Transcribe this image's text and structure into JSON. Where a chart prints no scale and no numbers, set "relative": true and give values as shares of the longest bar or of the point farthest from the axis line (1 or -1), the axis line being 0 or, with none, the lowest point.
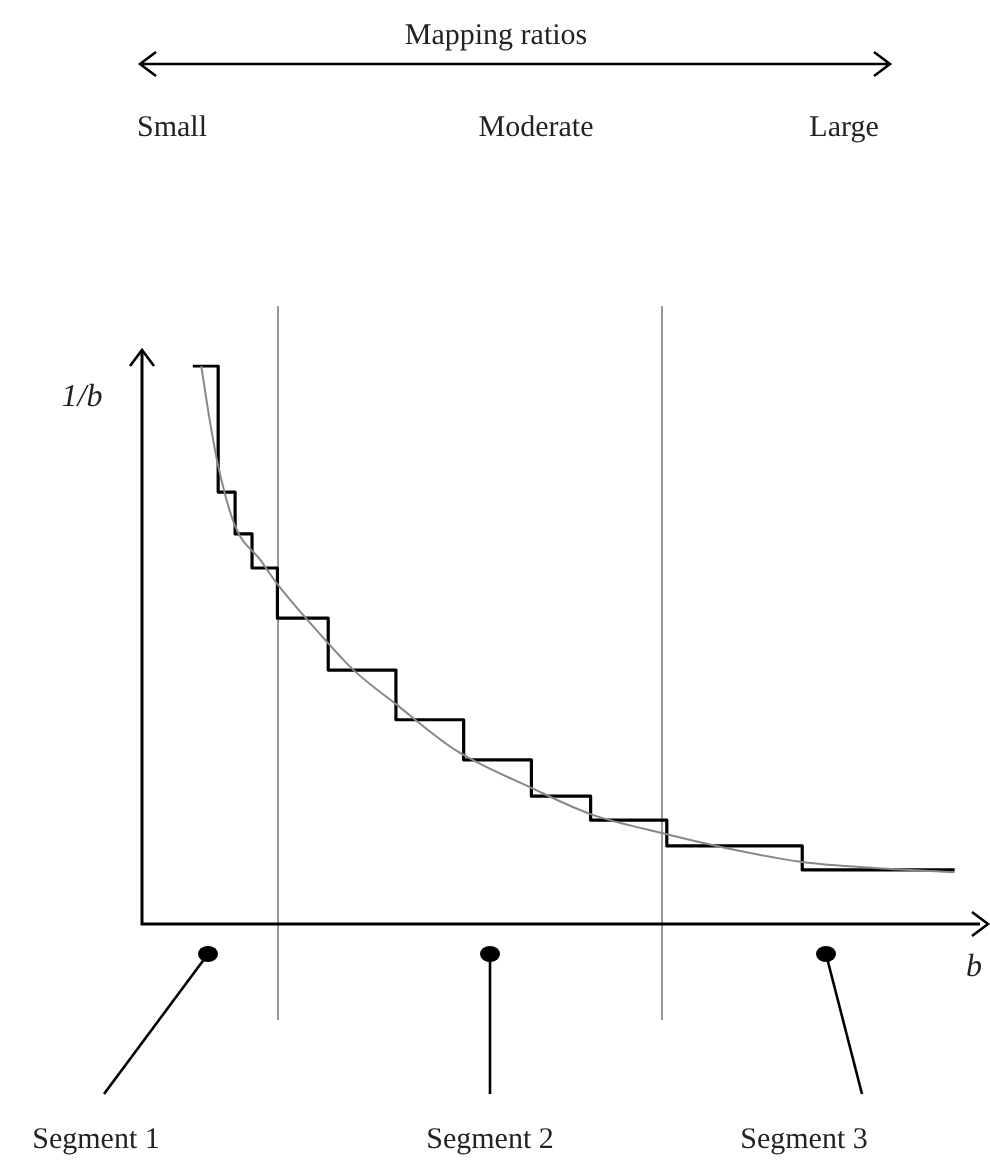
{
  "chart_data": {
    "type": "line",
    "relative": true,
    "xlabel": "b",
    "ylabel": "1/b",
    "marker": "none",
    "categories": [
      null,
      null,
      null,
      null,
      null,
      null,
      null,
      null,
      null,
      null,
      null,
      null,
      null,
      null,
      null,
      null,
      null,
      null,
      null,
      null,
      null,
      null,
      null,
      null,
      null,
      null,
      null,
      null,
      null,
      null,
      null,
      null,
      null,
      null,
      null,
      null,
      null,
      null,
      null,
      null,
      null,
      null,
      null,
      null,
      null,
      null,
      null,
      null,
      null,
      null,
      null,
      null,
      null,
      null,
      null,
      null,
      null,
      null,
      null,
      null,
      null,
      null,
      null,
      null,
      null,
      null,
      null,
      null,
      null,
      null,
      null,
      null,
      null,
      null,
      null,
      null,
      null,
      null,
      null,
      null,
      null,
      null,
      null,
      null,
      null,
      null,
      null,
      null,
      null,
      null,
      null,
      null,
      null,
      null,
      null,
      null,
      null,
      null,
      null,
      null
    ],
    "series": [
      {
        "type": "step",
        "color": "#000000",
        "values": [
          null,
          null,
          null,
          null,
          null,
          null,
          1,
          null,
          null,
          0.774,
          null,
          0.699,
          null,
          0.638,
          null,
          null,
          0.548,
          null,
          null,
          null,
          null,
          null,
          0.455,
          null,
          null,
          null,
          null,
          null,
          null,
          null,
          0.366,
          null,
          null,
          null,
          null,
          null,
          null,
          null,
          0.294,
          null,
          null,
          null,
          null,
          null,
          null,
          null,
          0.229,
          null,
          null,
          null,
          null,
          null,
          null,
          0.186,
          null,
          null,
          null,
          null,
          null,
          null,
          null,
          null,
          0.14,
          null,
          null,
          null,
          null,
          null,
          null,
          null,
          null,
          null,
          null,
          null,
          null,
          null,
          null,
          null,
          0.097,
          null,
          null,
          null,
          null,
          null,
          null,
          null,
          null,
          null,
          null,
          null,
          null,
          null,
          null,
          null,
          null,
          null,
          0.097,
          null,
          null,
          null
        ]
      },
      {
        "type": "line",
        "color": "#888888",
        "values": [
          null,
          null,
          null,
          null,
          null,
          null,
          null,
          1,
          0.903,
          0.821,
          null,
          0.713,
          null,
          null,
          0.652,
          null,
          0.609,
          null,
          null,
          null,
          null,
          0.52,
          null,
          null,
          null,
          0.455,
          null,
          null,
          null,
          null,
          0.394,
          null,
          null,
          null,
          null,
          null,
          null,
          0.312,
          null,
          null,
          null,
          null,
          null,
          null,
          null,
          null,
          0.244,
          null,
          null,
          null,
          null,
          null,
          null,
          0.197,
          null,
          null,
          null,
          null,
          null,
          null,
          null,
          null,
          0.161,
          null,
          null,
          null,
          null,
          null,
          null,
          null,
          0.133,
          null,
          null,
          null,
          null,
          null,
          null,
          null,
          0.111,
          null,
          null,
          null,
          null,
          null,
          null,
          null,
          null,
          0.1,
          null,
          null,
          null,
          null,
          null,
          null,
          null,
          null,
          0.093,
          null,
          null,
          null
        ]
      }
    ],
    "annotations": [
      "Mapping ratios",
      "Small",
      "Moderate",
      "Large",
      "Segment 1",
      "Segment 2",
      "Segment 3"
    ]
  }
}
